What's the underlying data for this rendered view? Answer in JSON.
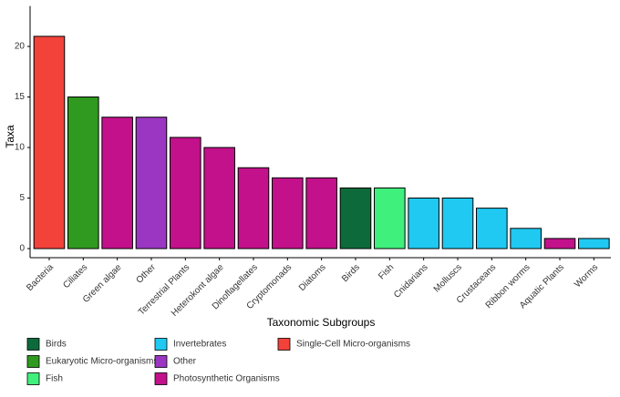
{
  "chart_data": {
    "type": "bar",
    "x_label": "Taxonomic Subgroups",
    "y_label": "Taxa",
    "categories": [
      "Bacteria",
      "Ciliates",
      "Green algae",
      "Other",
      "Terrestrial Plants",
      "Heterokont algae",
      "Dinoflagellates",
      "Cryptomonads",
      "Diatoms",
      "Birds",
      "Fish",
      "Cnidarians",
      "Molluscs",
      "Crustaceans",
      "Ribbon worms",
      "Aquatic Plants",
      "Worms"
    ],
    "series": [
      {
        "name": "Birds",
        "color": "#0d6b3b",
        "values": [
          null,
          null,
          null,
          null,
          null,
          null,
          null,
          null,
          null,
          6,
          null,
          null,
          null,
          null,
          null,
          null,
          null
        ]
      },
      {
        "name": "Eukaryotic Micro-organisms",
        "color": "#2f9a1f",
        "values": [
          null,
          15,
          null,
          null,
          null,
          null,
          null,
          null,
          null,
          null,
          null,
          null,
          null,
          null,
          null,
          null,
          null
        ]
      },
      {
        "name": "Fish",
        "color": "#40f07c",
        "values": [
          null,
          null,
          null,
          null,
          null,
          null,
          null,
          null,
          null,
          null,
          6,
          null,
          null,
          null,
          null,
          null,
          null
        ]
      },
      {
        "name": "Invertebrates",
        "color": "#1fc9f2",
        "values": [
          null,
          null,
          null,
          null,
          null,
          null,
          null,
          null,
          null,
          null,
          null,
          5,
          5,
          4,
          2,
          null,
          1
        ]
      },
      {
        "name": "Other",
        "color": "#9b36c2",
        "values": [
          null,
          null,
          null,
          13,
          null,
          null,
          null,
          null,
          null,
          null,
          null,
          null,
          null,
          null,
          null,
          null,
          null
        ]
      },
      {
        "name": "Photosynthetic Organisms",
        "color": "#c2118b",
        "values": [
          null,
          null,
          13,
          null,
          11,
          10,
          8,
          7,
          7,
          null,
          null,
          null,
          null,
          null,
          null,
          1,
          null
        ]
      },
      {
        "name": "Single-Cell Micro-organisms",
        "color": "#f2423a",
        "values": [
          21,
          null,
          null,
          null,
          null,
          null,
          null,
          null,
          null,
          null,
          null,
          null,
          null,
          null,
          null,
          null,
          null
        ]
      }
    ],
    "ylim": [
      -0.9,
      24
    ],
    "yticks": [
      0,
      5,
      10,
      15,
      20
    ],
    "grid": false,
    "legend": "bottom"
  }
}
